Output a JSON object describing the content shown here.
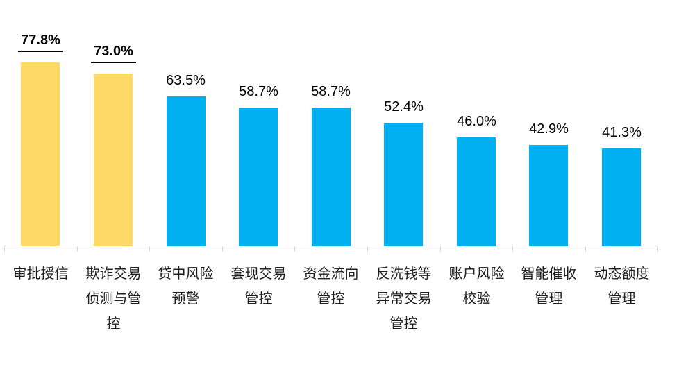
{
  "chart_data": {
    "type": "bar",
    "title": "",
    "xlabel": "",
    "ylabel": "",
    "categories": [
      "审批授信",
      "欺诈交易侦测与管控",
      "贷中风险预警",
      "套现交易管控",
      "资金流向管控",
      "反洗钱等异常交易管控",
      "账户风险校验",
      "智能催收管理",
      "动态额度管理"
    ],
    "category_label_lines": [
      [
        "审批授信"
      ],
      [
        "欺诈交易",
        "侦测与管",
        "控"
      ],
      [
        "贷中风险",
        "预警"
      ],
      [
        "套现交易",
        "管控"
      ],
      [
        "资金流向",
        "管控"
      ],
      [
        "反洗钱等",
        "异常交易",
        "管控"
      ],
      [
        "账户风险",
        "校验"
      ],
      [
        "智能催收",
        "管理"
      ],
      [
        "动态额度",
        "管理"
      ]
    ],
    "values": [
      77.8,
      73.0,
      63.5,
      58.7,
      58.7,
      52.4,
      46.0,
      42.9,
      41.3
    ],
    "data_labels": [
      "77.8%",
      "73.0%",
      "63.5%",
      "58.7%",
      "58.7%",
      "52.4%",
      "46.0%",
      "42.9%",
      "41.3%"
    ],
    "emphasized": [
      true,
      true,
      false,
      false,
      false,
      false,
      false,
      false,
      false
    ],
    "colors": {
      "bar_highlight": "#FFD966",
      "bar_default": "#00B0F0",
      "data_label_text": "#000000",
      "category_label_text": "#1F1F1F",
      "axis_line": "#D9D9D9"
    },
    "ylim": [
      0,
      100
    ],
    "grid": false,
    "legend": "none"
  }
}
